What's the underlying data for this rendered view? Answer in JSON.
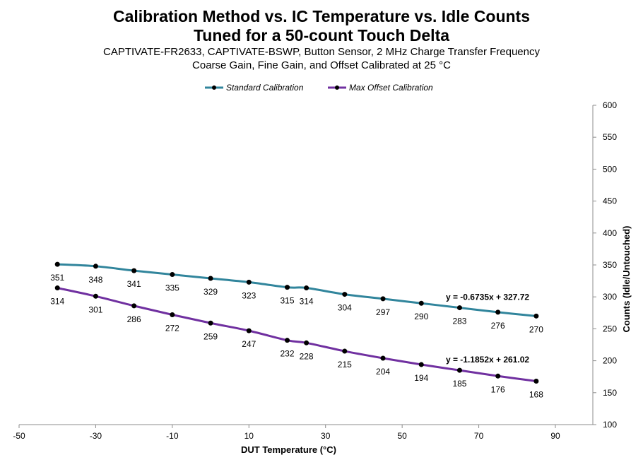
{
  "chart_data": {
    "type": "line",
    "title": [
      "Calibration Method vs. IC Temperature vs. Idle Counts",
      "Tuned for a 50-count Touch Delta"
    ],
    "subtitle": [
      "CAPTIVATE-FR2633, CAPTIVATE-BSWP, Button Sensor, 2 MHz Charge Transfer Frequency",
      "Coarse Gain, Fine Gain, and Offset Calibrated at 25 °C"
    ],
    "xlabel": "DUT Temperature (°C)",
    "ylabel": "Counts (Idle/Untouched)",
    "xlim": [
      -50,
      90
    ],
    "ylim": [
      100,
      600
    ],
    "x_ticks": [
      -50,
      -30,
      -10,
      10,
      30,
      50,
      70,
      90
    ],
    "y_ticks": [
      100,
      150,
      200,
      250,
      300,
      350,
      400,
      450,
      500,
      550,
      600
    ],
    "y_axis_side": "right",
    "grid": false,
    "legend_position": "top-center",
    "x": [
      -40,
      -30,
      -20,
      -10,
      0,
      10,
      20,
      25,
      35,
      45,
      55,
      65,
      75,
      85
    ],
    "series": [
      {
        "name": "Standard Calibration",
        "color": "#31859C",
        "values": [
          351,
          348,
          341,
          335,
          329,
          323,
          315,
          314,
          304,
          297,
          290,
          283,
          276,
          270
        ],
        "trendline": "y = -0.6735x + 327.72"
      },
      {
        "name": "Max Offset Calibration",
        "color": "#7030A0",
        "values": [
          314,
          301,
          286,
          272,
          259,
          247,
          232,
          228,
          215,
          204,
          194,
          185,
          176,
          168
        ],
        "trendline": "y = -1.1852x + 261.02"
      }
    ]
  }
}
